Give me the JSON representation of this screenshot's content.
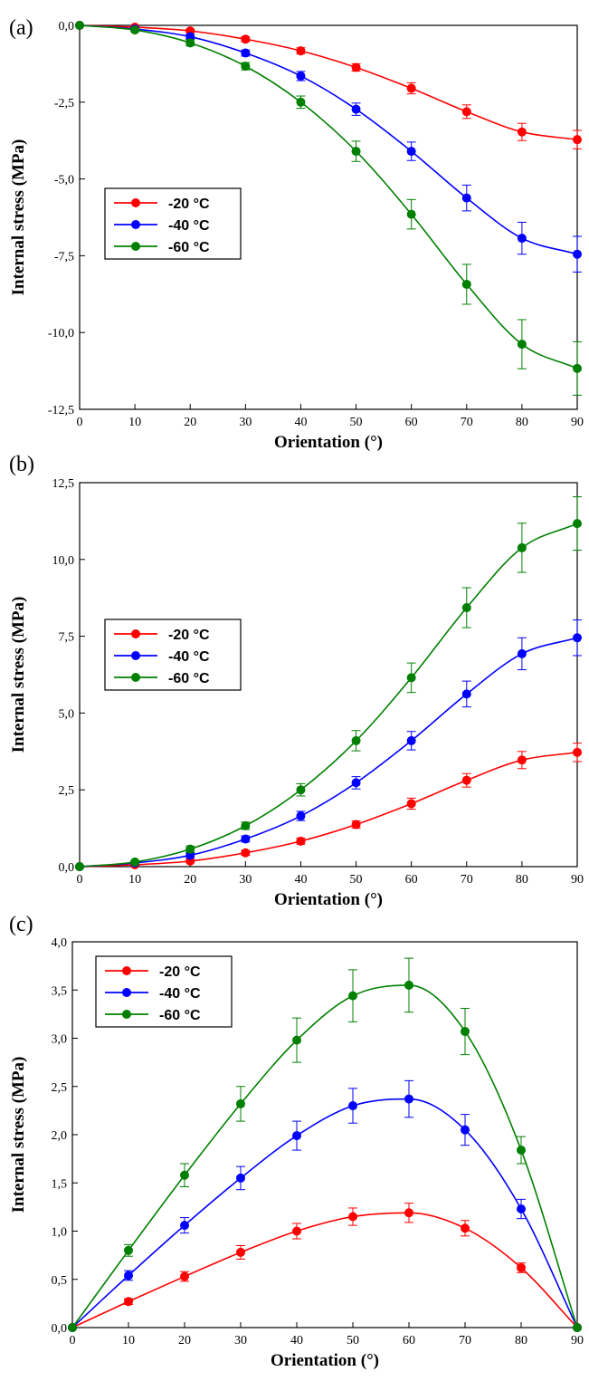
{
  "chart_data": [
    {
      "type": "line",
      "panel_label": "(a)",
      "xlabel": "Orientation (°)",
      "ylabel": "Internal stress (MPa)",
      "xlim": [
        0,
        90
      ],
      "ylim": [
        -12.5,
        0
      ],
      "x_ticks": [
        "0",
        "10",
        "20",
        "30",
        "40",
        "50",
        "60",
        "70",
        "80",
        "90"
      ],
      "y_ticks": [
        "0,0",
        "-2,5",
        "-5,0",
        "-7,5",
        "-10,0",
        "-12,5"
      ],
      "legend_position": "middle-left",
      "x": [
        0,
        10,
        20,
        30,
        40,
        50,
        60,
        70,
        80,
        90
      ],
      "series": [
        {
          "name": "-20 °C",
          "color": "#ff0000",
          "values": [
            0,
            -0.06,
            -0.18,
            -0.45,
            -0.83,
            -1.37,
            -2.05,
            -2.81,
            -3.47,
            -3.72
          ],
          "errors": [
            0,
            0.03,
            0.05,
            0.08,
            0.1,
            0.12,
            0.18,
            0.22,
            0.28,
            0.3
          ]
        },
        {
          "name": "-40 °C",
          "color": "#0000ff",
          "values": [
            0,
            -0.12,
            -0.37,
            -0.9,
            -1.65,
            -2.73,
            -4.1,
            -5.62,
            -6.93,
            -7.45
          ],
          "errors": [
            0,
            0.04,
            0.08,
            0.1,
            0.15,
            0.2,
            0.3,
            0.42,
            0.52,
            0.58
          ]
        },
        {
          "name": "-60 °C",
          "color": "#008000",
          "values": [
            0,
            -0.15,
            -0.57,
            -1.33,
            -2.5,
            -4.1,
            -6.15,
            -8.43,
            -10.38,
            -11.17
          ],
          "errors": [
            0,
            0.05,
            0.1,
            0.12,
            0.2,
            0.33,
            0.48,
            0.65,
            0.8,
            0.87
          ]
        }
      ]
    },
    {
      "type": "line",
      "panel_label": "(b)",
      "xlabel": "Orientation (°)",
      "ylabel": "Internal stress (MPa)",
      "xlim": [
        0,
        90
      ],
      "ylim": [
        0,
        12.5
      ],
      "x_ticks": [
        "0",
        "10",
        "20",
        "30",
        "40",
        "50",
        "60",
        "70",
        "80",
        "90"
      ],
      "y_ticks": [
        "0,0",
        "2,5",
        "5,0",
        "7,5",
        "10,0",
        "12,5"
      ],
      "legend_position": "middle-left",
      "x": [
        0,
        10,
        20,
        30,
        40,
        50,
        60,
        70,
        80,
        90
      ],
      "series": [
        {
          "name": "-20 °C",
          "color": "#ff0000",
          "values": [
            0,
            0.06,
            0.18,
            0.45,
            0.83,
            1.37,
            2.05,
            2.81,
            3.47,
            3.72
          ],
          "errors": [
            0,
            0.03,
            0.05,
            0.08,
            0.1,
            0.12,
            0.18,
            0.22,
            0.28,
            0.3
          ]
        },
        {
          "name": "-40 °C",
          "color": "#0000ff",
          "values": [
            0,
            0.12,
            0.37,
            0.9,
            1.65,
            2.73,
            4.1,
            5.62,
            6.93,
            7.45
          ],
          "errors": [
            0,
            0.04,
            0.08,
            0.1,
            0.15,
            0.2,
            0.3,
            0.42,
            0.52,
            0.58
          ]
        },
        {
          "name": "-60 °C",
          "color": "#008000",
          "values": [
            0,
            0.15,
            0.57,
            1.33,
            2.5,
            4.1,
            6.15,
            8.43,
            10.38,
            11.17
          ],
          "errors": [
            0,
            0.05,
            0.1,
            0.12,
            0.2,
            0.33,
            0.48,
            0.65,
            0.8,
            0.87
          ]
        }
      ]
    },
    {
      "type": "line",
      "panel_label": "(c)",
      "xlabel": "Orientation (°)",
      "ylabel": "Internal stress (MPa)",
      "xlim": [
        0,
        90
      ],
      "ylim": [
        0,
        4
      ],
      "x_ticks": [
        "0",
        "10",
        "20",
        "30",
        "40",
        "50",
        "60",
        "70",
        "80",
        "90"
      ],
      "y_ticks": [
        "0,0",
        "0,5",
        "1,0",
        "1,5",
        "2,0",
        "2,5",
        "3,0",
        "3,5",
        "4,0"
      ],
      "legend_position": "top-left",
      "x": [
        0,
        10,
        20,
        30,
        40,
        50,
        60,
        70,
        80,
        90
      ],
      "series": [
        {
          "name": "-20 °C",
          "color": "#ff0000",
          "values": [
            0,
            0.27,
            0.53,
            0.78,
            1.0,
            1.15,
            1.19,
            1.03,
            0.62,
            0
          ],
          "errors": [
            0,
            0.03,
            0.05,
            0.07,
            0.08,
            0.09,
            0.1,
            0.08,
            0.05,
            0
          ]
        },
        {
          "name": "-40 °C",
          "color": "#0000ff",
          "values": [
            0,
            0.54,
            1.06,
            1.55,
            1.99,
            2.3,
            2.37,
            2.05,
            1.23,
            0
          ],
          "errors": [
            0,
            0.05,
            0.08,
            0.12,
            0.15,
            0.18,
            0.19,
            0.16,
            0.1,
            0
          ]
        },
        {
          "name": "-60 °C",
          "color": "#008000",
          "values": [
            0,
            0.8,
            1.58,
            2.32,
            2.98,
            3.44,
            3.55,
            3.07,
            1.84,
            0
          ],
          "errors": [
            0,
            0.06,
            0.12,
            0.18,
            0.23,
            0.27,
            0.28,
            0.24,
            0.14,
            0
          ]
        }
      ]
    }
  ]
}
